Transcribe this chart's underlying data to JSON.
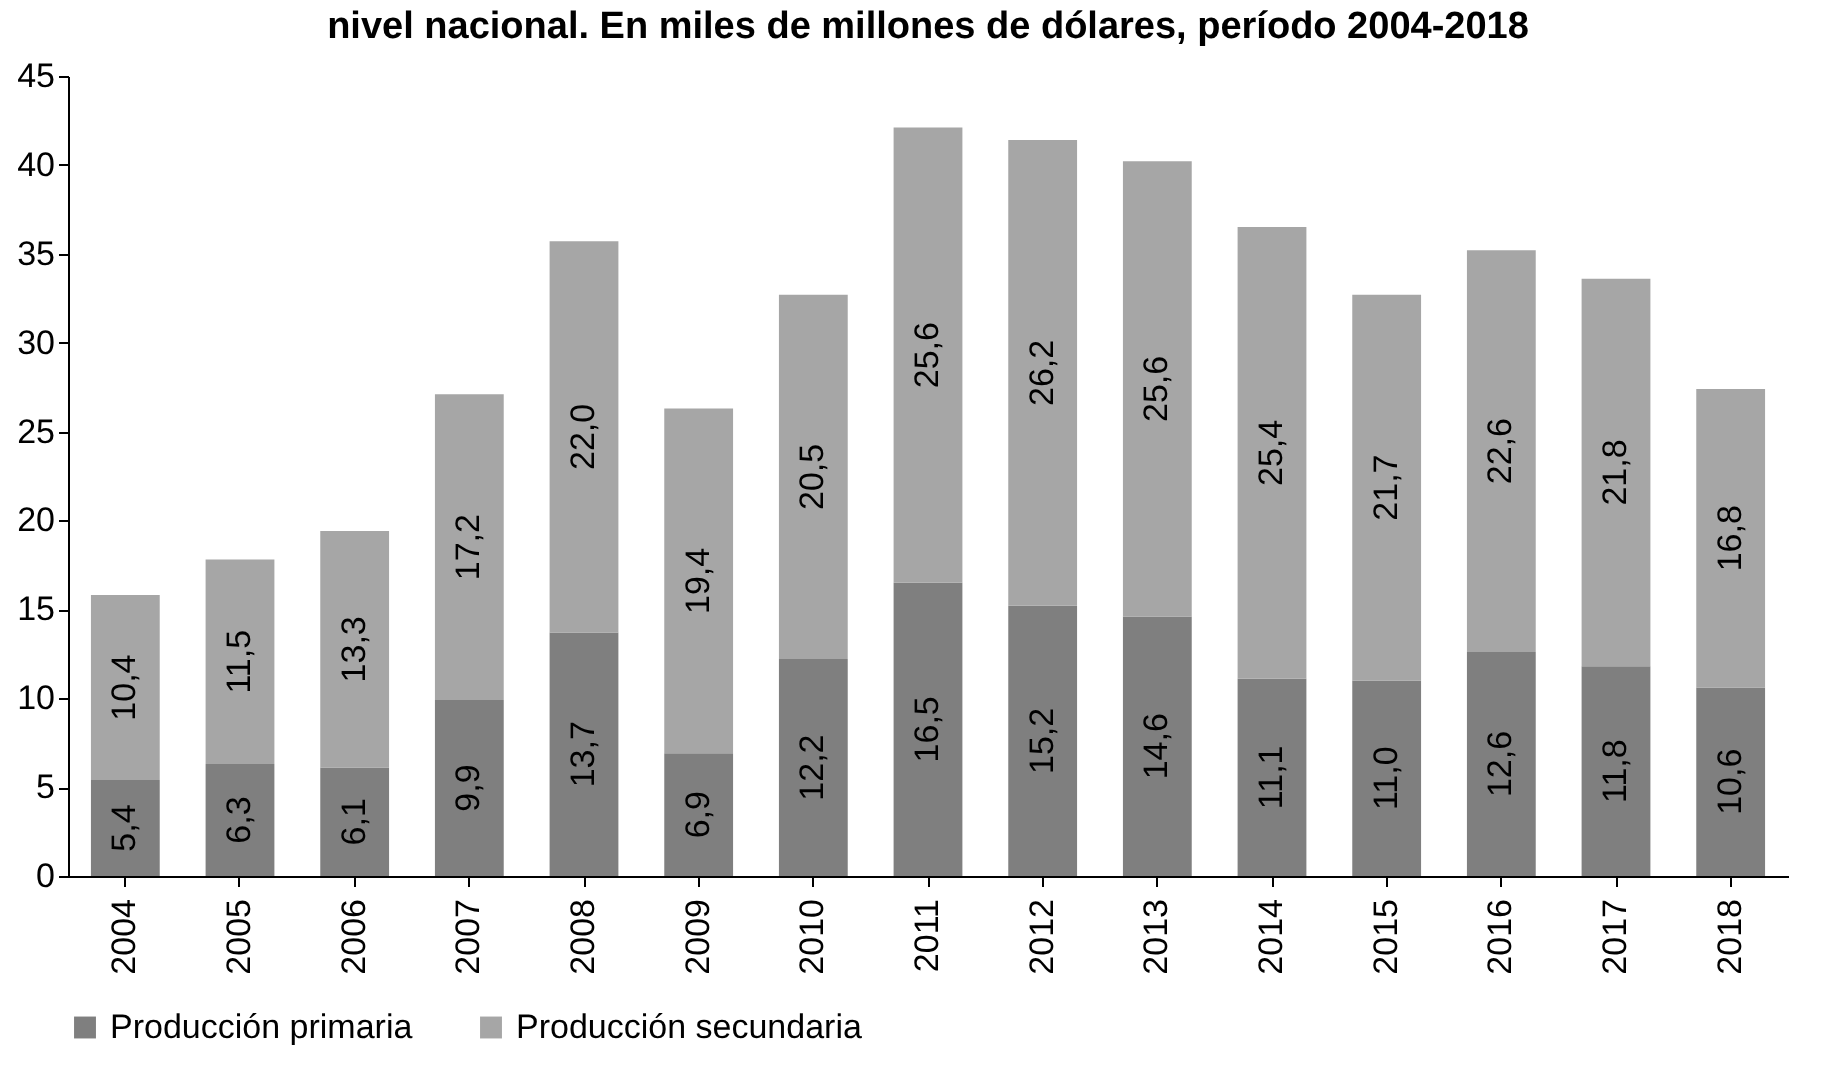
{
  "chart_data": {
    "type": "bar",
    "title": "nivel nacional. En miles de millones de dólares, período 2004-2018",
    "categories": [
      "2004",
      "2005",
      "2006",
      "2007",
      "2008",
      "2009",
      "2010",
      "2011",
      "2012",
      "2013",
      "2014",
      "2015",
      "2016",
      "2017",
      "2018"
    ],
    "series": [
      {
        "name": "Producción primaria",
        "color": "#7f7f7f",
        "values": [
          5.4,
          6.3,
          6.1,
          9.9,
          13.7,
          6.9,
          12.2,
          16.5,
          15.2,
          14.6,
          11.1,
          11.0,
          12.6,
          11.8,
          10.6
        ],
        "value_labels": [
          "5,4",
          "6,3",
          "6,1",
          "9,9",
          "13,7",
          "6,9",
          "12,2",
          "16,5",
          "15,2",
          "14,6",
          "11,1",
          "11,0",
          "12,6",
          "11,8",
          "10,6"
        ]
      },
      {
        "name": "Producción secundaria",
        "color": "#a6a6a6",
        "values": [
          10.4,
          11.5,
          13.3,
          17.2,
          22.0,
          19.4,
          20.5,
          25.6,
          26.2,
          25.6,
          25.4,
          21.7,
          22.6,
          21.8,
          16.8
        ],
        "value_labels": [
          "10,4",
          "11,5",
          "13,3",
          "17,2",
          "22,0",
          "19,4",
          "20,5",
          "25,6",
          "26,2",
          "25,6",
          "25,4",
          "21,7",
          "22,6",
          "21,8",
          "16,8"
        ]
      }
    ],
    "stacked": true,
    "ylim": [
      0,
      45
    ],
    "yticks": [
      0,
      5,
      10,
      15,
      20,
      25,
      30,
      35,
      40,
      45
    ],
    "grid": false,
    "legend": "bottom"
  }
}
